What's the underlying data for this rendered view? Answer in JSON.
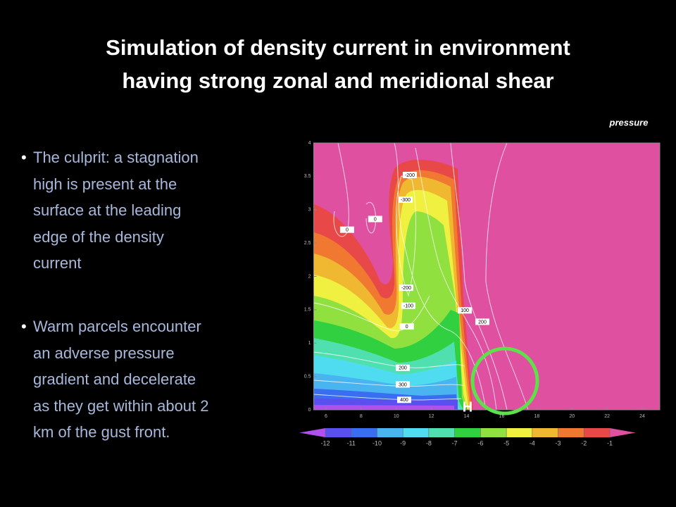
{
  "slide": {
    "title_lines": [
      "Simulation of density current in environment",
      "having strong zonal and meridional shear"
    ],
    "bullets": [
      [
        "The culprit: a stagnation",
        "high is present at the",
        "surface at the leading",
        "edge of the density",
        "current"
      ],
      [
        "Warm parcels encounter",
        "an adverse pressure",
        "gradient and decelerate",
        "as they get within about 2",
        "km of the gust front."
      ]
    ]
  },
  "chart_data": {
    "type": "contour",
    "label": "pressure",
    "xlim": [
      5.3,
      25
    ],
    "ylim": [
      0,
      4
    ],
    "xticks": [
      6,
      8,
      10,
      12,
      14,
      16,
      18,
      20,
      22,
      24
    ],
    "yticks": [
      0,
      0.5,
      1,
      1.5,
      2,
      2.5,
      3,
      3.5,
      4
    ],
    "marker_label": "H",
    "contour_labels": [
      {
        "value": -200,
        "x": 10.77,
        "y": 3.52
      },
      {
        "value": -300,
        "x": 10.53,
        "y": 3.15
      },
      {
        "value": 0,
        "x": 7.2,
        "y": 2.7
      },
      {
        "value": 0,
        "x": 8.8,
        "y": 2.86
      },
      {
        "value": -200,
        "x": 10.57,
        "y": 1.83
      },
      {
        "value": -100,
        "x": 10.69,
        "y": 1.56
      },
      {
        "value": 0,
        "x": 10.6,
        "y": 1.25
      },
      {
        "value": 100,
        "x": 13.9,
        "y": 1.49
      },
      {
        "value": 200,
        "x": 14.9,
        "y": 1.32
      },
      {
        "value": 200,
        "x": 10.37,
        "y": 0.63
      },
      {
        "value": 300,
        "x": 10.37,
        "y": 0.38
      },
      {
        "value": 400,
        "x": 10.45,
        "y": 0.15
      }
    ],
    "colorbar": {
      "levels": [
        -12,
        -11,
        -10,
        -9,
        -8,
        -7,
        -6,
        -5,
        -4,
        -3,
        -2,
        -1
      ],
      "colors": [
        "#b050f0",
        "#5a50f0",
        "#3a6ef0",
        "#4ab4f0",
        "#50dcf0",
        "#50e0b0",
        "#30d040",
        "#90e040",
        "#f0f040",
        "#f0b830",
        "#f07830",
        "#e84848",
        "#e050a0"
      ]
    }
  }
}
